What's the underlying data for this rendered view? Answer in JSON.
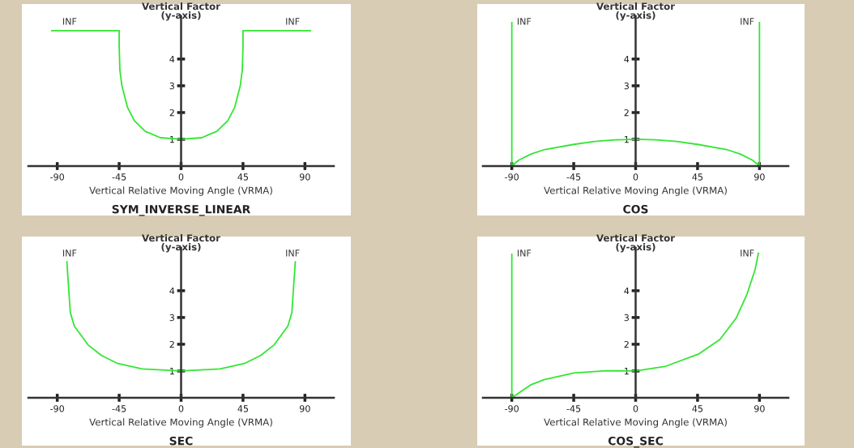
{
  "chart_data": [
    {
      "type": "line",
      "title": "SYM_INVERSE_LINEAR",
      "xlabel": "Vertical Relative Moving Angle (VRMA)",
      "ylabel": "Vertical Factor\n(y-axis)",
      "xlim": [
        -111,
        111
      ],
      "ylim": [
        0,
        5.6
      ],
      "xticks": [
        -90,
        -45,
        0,
        45,
        90
      ],
      "yticks": [
        1,
        2,
        3,
        4
      ],
      "x": [
        -94,
        -45,
        -45,
        -44.5,
        -43,
        -39,
        -34,
        -26,
        -15,
        0,
        15,
        26,
        34,
        39,
        43,
        44.5,
        45,
        45,
        94
      ],
      "series": [
        {
          "color": "#33e633",
          "values": [
            5.06,
            5.06,
            4.5,
            3.6,
            3,
            2.2,
            1.7,
            1.3,
            1.06,
            1,
            1.06,
            1.3,
            1.7,
            2.2,
            3,
            3.6,
            4.5,
            5.06,
            5.06
          ]
        }
      ],
      "annotations": [
        "INF",
        "INF"
      ]
    },
    {
      "type": "line",
      "title": "COS",
      "xlabel": "Vertical Relative Moving Angle (VRMA)",
      "ylabel": "Vertical Factor\n(y-axis)",
      "xlim": [
        -111,
        111
      ],
      "ylim": [
        0,
        5.6
      ],
      "xticks": [
        -90,
        -45,
        0,
        45,
        90
      ],
      "yticks": [
        1,
        2,
        3,
        4
      ],
      "x": [
        -90,
        -90,
        -85,
        -76,
        -66,
        -45,
        -30,
        -15,
        0,
        15,
        30,
        45,
        66,
        76,
        85,
        90,
        90
      ],
      "series": [
        {
          "color": "#33e633",
          "values": [
            5.36,
            0,
            0.22,
            0.45,
            0.62,
            0.81,
            0.92,
            0.98,
            1,
            0.98,
            0.92,
            0.81,
            0.62,
            0.45,
            0.22,
            0,
            5.36
          ]
        }
      ],
      "annotations": [
        "INF",
        "INF"
      ]
    },
    {
      "type": "line",
      "title": "SEC",
      "xlabel": "Vertical Relative Moving Angle (VRMA)",
      "ylabel": "Vertical Factor\n(y-axis)",
      "xlim": [
        -111,
        111
      ],
      "ylim": [
        0,
        5.6
      ],
      "xticks": [
        -90,
        -45,
        0,
        45,
        90
      ],
      "yticks": [
        1,
        2,
        3,
        4
      ],
      "x": [
        -83,
        -80.5,
        -77.6,
        -67.7,
        -57.9,
        -46,
        -28.3,
        0,
        28.3,
        46,
        57.9,
        67.7,
        77.6,
        80.5,
        83
      ],
      "series": [
        {
          "color": "#33e633",
          "values": [
            5.08,
            3.18,
            2.68,
            1.98,
            1.58,
            1.28,
            1.08,
            1,
            1.08,
            1.28,
            1.58,
            1.98,
            2.68,
            3.18,
            5.08
          ]
        }
      ],
      "annotations": [
        "INF",
        "INF"
      ]
    },
    {
      "type": "line",
      "title": "COS_SEC",
      "xlabel": "Vertical Relative Moving Angle (VRMA)",
      "ylabel": "Vertical Factor\n(y-axis)",
      "xlim": [
        -111,
        111
      ],
      "ylim": [
        0,
        5.6
      ],
      "xticks": [
        -90,
        -45,
        0,
        45,
        90
      ],
      "yticks": [
        1,
        2,
        3,
        4
      ],
      "x": [
        -90,
        -90,
        -76.4,
        -66.5,
        -44.9,
        -21.3,
        0,
        22,
        45.6,
        61.3,
        73.1,
        81,
        86.8,
        89.2
      ],
      "series": [
        {
          "color": "#33e633",
          "values": [
            5.36,
            0,
            0.48,
            0.68,
            0.93,
            1.01,
            1,
            1.18,
            1.63,
            2.18,
            2.98,
            3.88,
            4.78,
            5.4
          ]
        }
      ],
      "annotations": [
        "INF",
        "INF"
      ]
    }
  ]
}
